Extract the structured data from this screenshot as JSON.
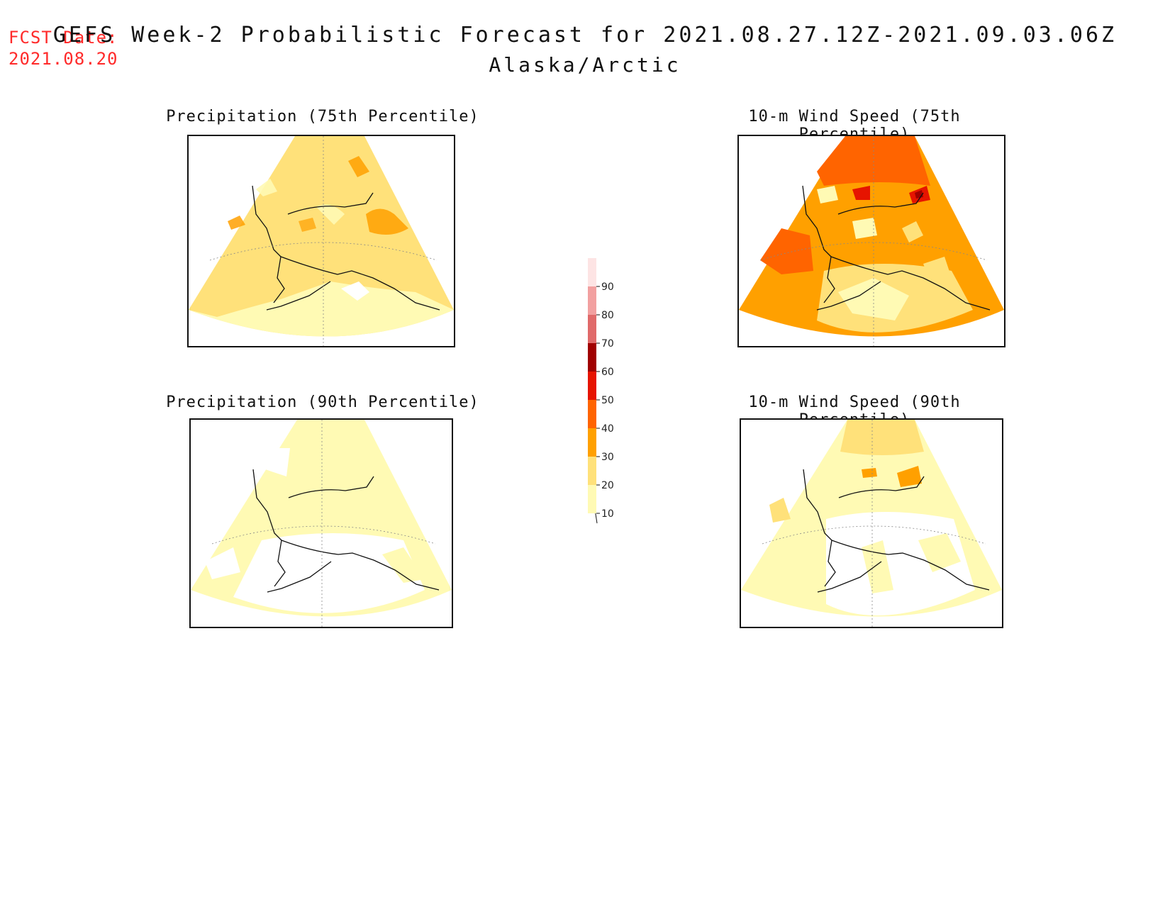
{
  "header": {
    "fcst_label": "FCST Date:",
    "fcst_date": "2021.08.20",
    "title": "GEFS Week-2 Probabilistic Forecast for 2021.08.27.12Z-2021.09.03.06Z",
    "region": "Alaska/Arctic"
  },
  "panels": [
    {
      "title": "Precipitation (75th Percentile)"
    },
    {
      "title": "10-m Wind Speed (75th Percentile)"
    },
    {
      "title": "Precipitation (90th Percentile)"
    },
    {
      "title": "10-m Wind Speed (90th Percentile)"
    }
  ],
  "colorbar": {
    "levels": [
      "10",
      "20",
      "30",
      "40",
      "50",
      "60",
      "70",
      "80",
      "90"
    ],
    "colors": {
      "lt10": "#ffffff",
      "10-20": "#fffab4",
      "20-30": "#ffe17a",
      "30-40": "#ffa000",
      "40-50": "#ff6400",
      "50-60": "#e61400",
      "60-70": "#a00000",
      "70-80": "#e06a6a",
      "80-90": "#f2a0a0",
      "gt90": "#fde4e4"
    }
  }
}
